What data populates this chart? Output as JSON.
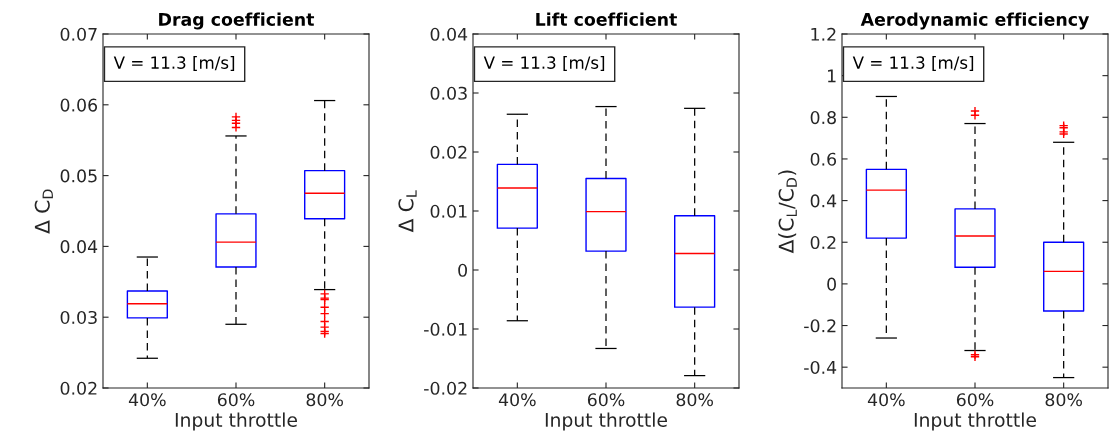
{
  "chart_data": [
    {
      "type": "box",
      "title": "Drag coefficient",
      "xlabel": "Input throttle",
      "ylabel": "Δ C$_{D}$",
      "categories": [
        "40%",
        "60%",
        "80%"
      ],
      "color": "#0000ff",
      "ylim": [
        0.02,
        0.07
      ],
      "yticks": [
        0.02,
        0.03,
        0.04,
        0.05,
        0.06,
        0.07
      ],
      "grid": false,
      "annotations": [
        "V = 11.3 [m/s]"
      ],
      "boxes": [
        {
          "low": 0.0242,
          "q1": 0.0299,
          "median": 0.0319,
          "q3": 0.0337,
          "high": 0.0385
        },
        {
          "low": 0.029,
          "q1": 0.0371,
          "median": 0.0406,
          "q3": 0.0446,
          "high": 0.0556,
          "outliers": [
            0.0583,
            0.0578,
            0.0574,
            0.0568
          ]
        },
        {
          "low": 0.0339,
          "q1": 0.0439,
          "median": 0.0475,
          "q3": 0.0507,
          "high": 0.0606,
          "outliers": [
            0.0333,
            0.0327,
            0.0325,
            0.0314,
            0.0305,
            0.0294,
            0.0286,
            0.028,
            0.0277
          ]
        }
      ]
    },
    {
      "type": "box",
      "title": "Lift coefficient",
      "xlabel": "Input throttle",
      "ylabel": "Δ C$_{L}$",
      "categories": [
        "40%",
        "60%",
        "80%"
      ],
      "color": "#0000ff",
      "ylim": [
        -0.02,
        0.04
      ],
      "yticks": [
        {
          "value": -0.02,
          "label": "-0.02"
        },
        {
          "value": -0.01,
          "label": "-0.01"
        },
        0,
        0.01,
        0.02,
        0.03,
        0.04
      ],
      "grid": false,
      "annotations": [
        "V = 11.3 [m/s]"
      ],
      "boxes": [
        {
          "low": -0.0086,
          "q1": 0.0071,
          "median": 0.0139,
          "q3": 0.0179,
          "high": 0.0264
        },
        {
          "low": -0.0133,
          "q1": 0.0032,
          "median": 0.0099,
          "q3": 0.0155,
          "high": 0.0277
        },
        {
          "low": -0.0179,
          "q1": -0.0063,
          "median": 0.0028,
          "q3": 0.0092,
          "high": 0.0274
        }
      ]
    },
    {
      "type": "box",
      "title": "Aerodynamic efficiency",
      "xlabel": "Input throttle",
      "ylabel": "Δ(C$_{L}$/C$_{D}$)",
      "categories": [
        "40%",
        "60%",
        "80%"
      ],
      "color": "#0000ff",
      "ylim": [
        -0.5,
        1.2
      ],
      "yticks": [
        {
          "value": -0.4,
          "label": "-0.4"
        },
        {
          "value": -0.2,
          "label": "-0.2"
        },
        0,
        0.2,
        0.4,
        0.6,
        0.8,
        1,
        1.2
      ],
      "grid": false,
      "annotations": [
        "V = 11.3 [m/s]"
      ],
      "boxes": [
        {
          "low": -0.26,
          "q1": 0.22,
          "median": 0.45,
          "q3": 0.55,
          "high": 0.9
        },
        {
          "low": -0.32,
          "q1": 0.08,
          "median": 0.23,
          "q3": 0.36,
          "high": 0.77,
          "outliers": [
            0.83,
            0.81,
            -0.34,
            -0.35
          ]
        },
        {
          "low": -0.45,
          "q1": -0.13,
          "median": 0.06,
          "q3": 0.2,
          "high": 0.68,
          "outliers": [
            0.76,
            0.75,
            0.73,
            0.72
          ]
        }
      ]
    }
  ]
}
